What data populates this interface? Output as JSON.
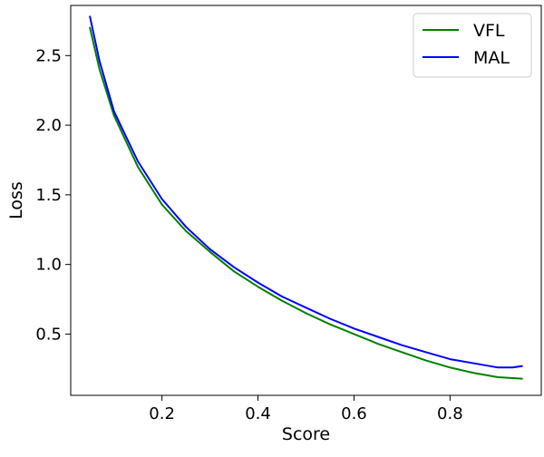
{
  "chart_data": {
    "type": "line",
    "xlabel": "Score",
    "ylabel": "Loss",
    "xlim": [
      0.01,
      0.99
    ],
    "ylim": [
      0.06,
      2.86
    ],
    "xticks": [
      {
        "value": 0.2,
        "label": "0.2"
      },
      {
        "value": 0.4,
        "label": "0.4"
      },
      {
        "value": 0.6,
        "label": "0.6"
      },
      {
        "value": 0.8,
        "label": "0.8"
      }
    ],
    "yticks": [
      {
        "value": 0.5,
        "label": "0.5"
      },
      {
        "value": 1.0,
        "label": "1.0"
      },
      {
        "value": 1.5,
        "label": "1.5"
      },
      {
        "value": 2.0,
        "label": "2.0"
      },
      {
        "value": 2.5,
        "label": "2.5"
      }
    ],
    "grid": false,
    "legend_position": "top-right",
    "series": [
      {
        "name": "VFL",
        "color": "#008000",
        "x": [
          0.05,
          0.07,
          0.1,
          0.15,
          0.2,
          0.25,
          0.3,
          0.35,
          0.4,
          0.45,
          0.5,
          0.55,
          0.6,
          0.65,
          0.7,
          0.75,
          0.8,
          0.85,
          0.9,
          0.95
        ],
        "y": [
          2.7,
          2.4,
          2.07,
          1.7,
          1.43,
          1.24,
          1.09,
          0.95,
          0.84,
          0.74,
          0.65,
          0.57,
          0.5,
          0.43,
          0.37,
          0.31,
          0.26,
          0.22,
          0.19,
          0.18
        ]
      },
      {
        "name": "MAL",
        "color": "#0000ff",
        "x": [
          0.05,
          0.07,
          0.1,
          0.15,
          0.2,
          0.25,
          0.3,
          0.35,
          0.4,
          0.45,
          0.5,
          0.55,
          0.6,
          0.65,
          0.7,
          0.75,
          0.8,
          0.85,
          0.9,
          0.93,
          0.95
        ],
        "y": [
          2.78,
          2.46,
          2.1,
          1.74,
          1.47,
          1.27,
          1.11,
          0.98,
          0.87,
          0.77,
          0.69,
          0.61,
          0.54,
          0.48,
          0.42,
          0.37,
          0.32,
          0.29,
          0.26,
          0.26,
          0.27
        ]
      }
    ]
  }
}
